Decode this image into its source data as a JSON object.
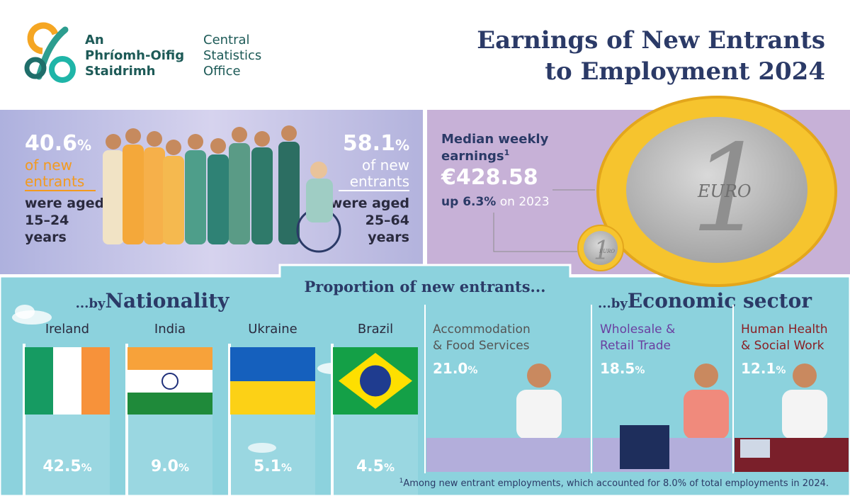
{
  "header": {
    "org_irish": [
      "An",
      "Phríomh-Oifig",
      "Staidrimh"
    ],
    "org_english": [
      "Central",
      "Statistics",
      "Office"
    ],
    "title_lines": [
      "Earnings of New Entrants",
      "to Employment 2024"
    ]
  },
  "age": {
    "young": {
      "value": "40.6",
      "unit": "%",
      "lines": [
        "of new",
        "entrants"
      ],
      "aged": [
        "were aged",
        "15–24",
        "years"
      ]
    },
    "older": {
      "value": "58.1",
      "unit": "%",
      "lines": [
        "of new",
        "entrants"
      ],
      "aged": [
        "were aged",
        "25–64",
        "years"
      ]
    }
  },
  "earnings": {
    "label": [
      "Median weekly",
      "earnings"
    ],
    "mark": "1",
    "value": "€428.58",
    "change": "up 6.3%",
    "change_suffix": "on 2023",
    "coin": {
      "numeral": "1",
      "word": "EURO"
    }
  },
  "proportion_title": "Proportion of new entrants...",
  "nationality": {
    "prefix": "...by",
    "title": "Nationality",
    "items": [
      {
        "name": "Ireland",
        "value": "42.5",
        "unit": "%"
      },
      {
        "name": "India",
        "value": "9.0",
        "unit": "%"
      },
      {
        "name": "Ukraine",
        "value": "5.1",
        "unit": "%"
      },
      {
        "name": "Brazil",
        "value": "4.5",
        "unit": "%"
      }
    ]
  },
  "sector": {
    "prefix": "...by",
    "title": "Economic sector",
    "items": [
      {
        "name_lines": [
          "Accommodation",
          "& Food Services"
        ],
        "value": "21.0",
        "unit": "%"
      },
      {
        "name_lines": [
          "Wholesale &",
          "Retail Trade"
        ],
        "value": "18.5",
        "unit": "%"
      },
      {
        "name_lines": [
          "Human Health",
          "& Social Work"
        ],
        "value": "12.1",
        "unit": "%"
      }
    ]
  },
  "footnote": {
    "mark": "1",
    "text": "Among new entrant employments, which accounted for 8.0% of total employments in 2024."
  }
}
